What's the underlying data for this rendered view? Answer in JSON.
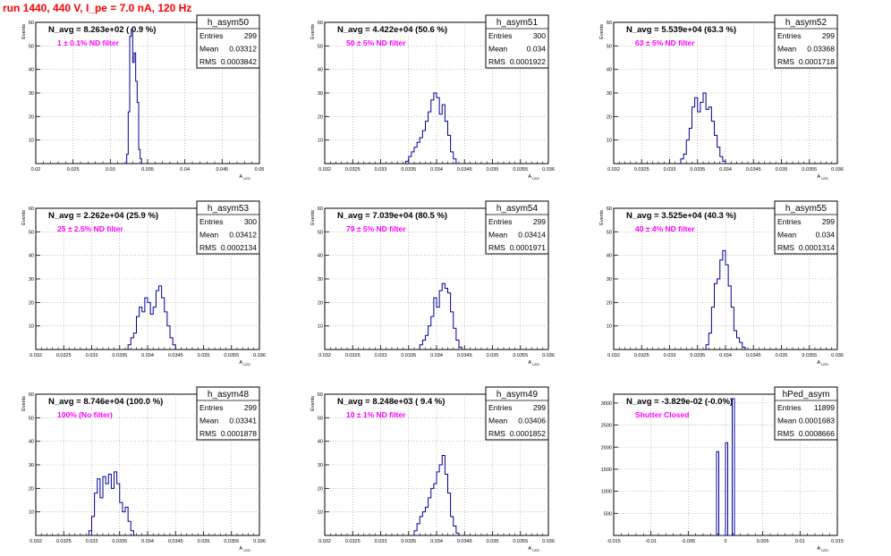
{
  "run_label": "run 1440,   440 V, I_pe = 7.0 nA, 120 Hz",
  "colors": {
    "hist_line": "#000099",
    "run_label": "#ff0000",
    "filter_label": "#ff00ff",
    "grid": "#999999"
  },
  "chart_data": [
    {
      "type": "histogram",
      "title": "h_asym50",
      "stats": {
        "entries_label": "Entries",
        "entries": "299",
        "mean_label": "Mean",
        "mean": "0.03312",
        "rms_label": "RMS",
        "rms": "0.0003842"
      },
      "navg_label": "N_avg = 8.263e+02 ( 0.9 %)",
      "filter_label": "1 ± 0.1% ND filter",
      "xlabel": "A_LED",
      "ylabel": "Events",
      "xlim": [
        0.02,
        0.05
      ],
      "ylim": [
        0,
        60
      ],
      "xticks": [
        0.02,
        0.025,
        0.03,
        0.035,
        0.04,
        0.045,
        0.05
      ],
      "xtick_labels": [
        "0.02",
        "0.025",
        "0.03",
        "0.035",
        "0.04",
        "0.045",
        "0.05"
      ],
      "yticks": [
        10,
        20,
        30,
        40,
        50,
        60
      ],
      "bins": [
        [
          0.0322,
          0.0324,
          4
        ],
        [
          0.0324,
          0.0326,
          22
        ],
        [
          0.0326,
          0.0328,
          54
        ],
        [
          0.0328,
          0.033,
          57
        ],
        [
          0.033,
          0.0332,
          43
        ],
        [
          0.0332,
          0.0334,
          47
        ],
        [
          0.0334,
          0.0336,
          35
        ],
        [
          0.0336,
          0.0338,
          26
        ],
        [
          0.0338,
          0.034,
          6
        ],
        [
          0.034,
          0.0342,
          2
        ]
      ]
    },
    {
      "type": "histogram",
      "title": "h_asym51",
      "stats": {
        "entries_label": "Entries",
        "entries": "300",
        "mean_label": "Mean",
        "mean": "0.034",
        "rms_label": "RMS",
        "rms": "0.0001922"
      },
      "navg_label": "N_avg = 4.422e+04 (50.6 %)",
      "filter_label": "50 ± 5% ND filter",
      "xlabel": "A_LED",
      "ylabel": "Events",
      "xlim": [
        0.032,
        0.036
      ],
      "ylim": [
        0,
        60
      ],
      "xticks": [
        0.032,
        0.0325,
        0.033,
        0.0335,
        0.034,
        0.0345,
        0.035,
        0.0355,
        0.036
      ],
      "xtick_labels": [
        "0.032",
        "0.0325",
        "0.033",
        "0.0335",
        "0.034",
        "0.0345",
        "0.035",
        "0.0355",
        "0.036"
      ],
      "yticks": [
        10,
        20,
        30,
        40,
        50,
        60
      ],
      "bins": [
        [
          0.03345,
          0.0335,
          1
        ],
        [
          0.0335,
          0.03355,
          3
        ],
        [
          0.03355,
          0.0336,
          5
        ],
        [
          0.0336,
          0.03365,
          7
        ],
        [
          0.03365,
          0.0337,
          9
        ],
        [
          0.0337,
          0.03375,
          11
        ],
        [
          0.03375,
          0.0338,
          14
        ],
        [
          0.0338,
          0.03385,
          18
        ],
        [
          0.03385,
          0.0339,
          22
        ],
        [
          0.0339,
          0.03395,
          27
        ],
        [
          0.03395,
          0.034,
          30
        ],
        [
          0.034,
          0.03405,
          28
        ],
        [
          0.03405,
          0.0341,
          21
        ],
        [
          0.0341,
          0.03415,
          25
        ],
        [
          0.03415,
          0.0342,
          18
        ],
        [
          0.0342,
          0.03425,
          12
        ],
        [
          0.03425,
          0.0343,
          5
        ],
        [
          0.0343,
          0.03435,
          2
        ]
      ]
    },
    {
      "type": "histogram",
      "title": "h_asym52",
      "stats": {
        "entries_label": "Entries",
        "entries": "299",
        "mean_label": "Mean",
        "mean": "0.03368",
        "rms_label": "RMS",
        "rms": "0.0001718"
      },
      "navg_label": "N_avg = 5.539e+04 (63.3 %)",
      "filter_label": "63 ± 5% ND filter",
      "xlabel": "A_LED",
      "ylabel": "Events",
      "xlim": [
        0.032,
        0.036
      ],
      "ylim": [
        0,
        60
      ],
      "xticks": [
        0.032,
        0.0325,
        0.033,
        0.0335,
        0.034,
        0.0345,
        0.035,
        0.0355,
        0.036
      ],
      "xtick_labels": [
        "0.032",
        "0.0325",
        "0.033",
        "0.0335",
        "0.034",
        "0.0345",
        "0.035",
        "0.0355",
        "0.036"
      ],
      "yticks": [
        10,
        20,
        30,
        40,
        50,
        60
      ],
      "bins": [
        [
          0.0332,
          0.03325,
          2
        ],
        [
          0.03325,
          0.0333,
          4
        ],
        [
          0.0333,
          0.03335,
          10
        ],
        [
          0.03335,
          0.0334,
          15
        ],
        [
          0.0334,
          0.03345,
          24
        ],
        [
          0.03345,
          0.0335,
          28
        ],
        [
          0.0335,
          0.03355,
          22
        ],
        [
          0.03355,
          0.0336,
          26
        ],
        [
          0.0336,
          0.03365,
          30
        ],
        [
          0.03365,
          0.0337,
          23
        ],
        [
          0.0337,
          0.03375,
          24
        ],
        [
          0.03375,
          0.0338,
          18
        ],
        [
          0.0338,
          0.03385,
          12
        ],
        [
          0.03385,
          0.0339,
          7
        ],
        [
          0.0339,
          0.03395,
          3
        ],
        [
          0.03395,
          0.034,
          1
        ]
      ]
    },
    {
      "type": "histogram",
      "title": "h_asym53",
      "stats": {
        "entries_label": "Entries",
        "entries": "300",
        "mean_label": "Mean",
        "mean": "0.03412",
        "rms_label": "RMS",
        "rms": "0.0002134"
      },
      "navg_label": "N_avg = 2.262e+04 (25.9 %)",
      "filter_label": "25 ± 2.5% ND filter",
      "xlabel": "A_LED",
      "ylabel": "Events",
      "xlim": [
        0.032,
        0.036
      ],
      "ylim": [
        0,
        60
      ],
      "xticks": [
        0.032,
        0.0325,
        0.033,
        0.0335,
        0.034,
        0.0345,
        0.035,
        0.0355,
        0.036
      ],
      "xtick_labels": [
        "0.032",
        "0.0325",
        "0.033",
        "0.0335",
        "0.034",
        "0.0345",
        "0.035",
        "0.0355",
        "0.036"
      ],
      "yticks": [
        10,
        20,
        30,
        40,
        50,
        60
      ],
      "bins": [
        [
          0.03365,
          0.0337,
          2
        ],
        [
          0.0337,
          0.03375,
          5
        ],
        [
          0.03375,
          0.0338,
          7
        ],
        [
          0.0338,
          0.03385,
          14
        ],
        [
          0.03385,
          0.0339,
          18
        ],
        [
          0.0339,
          0.03395,
          16
        ],
        [
          0.03395,
          0.034,
          22
        ],
        [
          0.034,
          0.03405,
          20
        ],
        [
          0.03405,
          0.0341,
          15
        ],
        [
          0.0341,
          0.03415,
          18
        ],
        [
          0.03415,
          0.0342,
          25
        ],
        [
          0.0342,
          0.03425,
          27
        ],
        [
          0.03425,
          0.0343,
          22
        ],
        [
          0.0343,
          0.03435,
          16
        ],
        [
          0.03435,
          0.0344,
          10
        ],
        [
          0.0344,
          0.03445,
          5
        ],
        [
          0.03445,
          0.0345,
          2
        ]
      ]
    },
    {
      "type": "histogram",
      "title": "h_asym54",
      "stats": {
        "entries_label": "Entries",
        "entries": "299",
        "mean_label": "Mean",
        "mean": "0.03414",
        "rms_label": "RMS",
        "rms": "0.0001971"
      },
      "navg_label": "N_avg = 7.039e+04 (80.5 %)",
      "filter_label": "79 ± 5% ND filter",
      "xlabel": "A_LED",
      "ylabel": "Events",
      "xlim": [
        0.032,
        0.036
      ],
      "ylim": [
        0,
        60
      ],
      "xticks": [
        0.032,
        0.0325,
        0.033,
        0.0335,
        0.034,
        0.0345,
        0.035,
        0.0355,
        0.036
      ],
      "xtick_labels": [
        "0.032",
        "0.0325",
        "0.033",
        "0.0335",
        "0.034",
        "0.0345",
        "0.035",
        "0.0355",
        "0.036"
      ],
      "yticks": [
        10,
        20,
        30,
        40,
        50,
        60
      ],
      "bins": [
        [
          0.0337,
          0.03375,
          2
        ],
        [
          0.03375,
          0.0338,
          4
        ],
        [
          0.0338,
          0.03385,
          6
        ],
        [
          0.03385,
          0.0339,
          10
        ],
        [
          0.0339,
          0.03395,
          14
        ],
        [
          0.03395,
          0.034,
          22
        ],
        [
          0.034,
          0.03405,
          18
        ],
        [
          0.03405,
          0.0341,
          25
        ],
        [
          0.0341,
          0.03415,
          28
        ],
        [
          0.03415,
          0.0342,
          26
        ],
        [
          0.0342,
          0.03425,
          24
        ],
        [
          0.03425,
          0.0343,
          16
        ],
        [
          0.0343,
          0.03435,
          9
        ],
        [
          0.03435,
          0.0344,
          4
        ],
        [
          0.0344,
          0.03445,
          1
        ]
      ]
    },
    {
      "type": "histogram",
      "title": "h_asym55",
      "stats": {
        "entries_label": "Entries",
        "entries": "299",
        "mean_label": "Mean",
        "mean": "0.034",
        "rms_label": "RMS",
        "rms": "0.0001314"
      },
      "navg_label": "N_avg = 3.525e+04 (40.3 %)",
      "filter_label": "40 ± 4% ND filter",
      "xlabel": "A_LED",
      "ylabel": "Events",
      "xlim": [
        0.032,
        0.036
      ],
      "ylim": [
        0,
        60
      ],
      "xticks": [
        0.032,
        0.0325,
        0.033,
        0.0335,
        0.034,
        0.0345,
        0.035,
        0.0355,
        0.036
      ],
      "xtick_labels": [
        "0.032",
        "0.0325",
        "0.033",
        "0.0335",
        "0.034",
        "0.0345",
        "0.035",
        "0.0355",
        "0.036"
      ],
      "yticks": [
        10,
        20,
        30,
        40,
        50,
        60
      ],
      "bins": [
        [
          0.03365,
          0.0337,
          2
        ],
        [
          0.0337,
          0.03375,
          7
        ],
        [
          0.03375,
          0.0338,
          18
        ],
        [
          0.0338,
          0.03385,
          28
        ],
        [
          0.03385,
          0.0339,
          30
        ],
        [
          0.0339,
          0.03395,
          38
        ],
        [
          0.03395,
          0.034,
          42
        ],
        [
          0.034,
          0.03405,
          36
        ],
        [
          0.03405,
          0.0341,
          27
        ],
        [
          0.0341,
          0.03415,
          18
        ],
        [
          0.03415,
          0.0342,
          8
        ],
        [
          0.0342,
          0.03425,
          5
        ],
        [
          0.03425,
          0.0343,
          3
        ],
        [
          0.0343,
          0.03435,
          1
        ]
      ]
    },
    {
      "type": "histogram",
      "title": "h_asym48",
      "stats": {
        "entries_label": "Entries",
        "entries": "299",
        "mean_label": "Mean",
        "mean": "0.03341",
        "rms_label": "RMS",
        "rms": "0.0001878"
      },
      "navg_label": "N_avg = 8.746e+04 (100.0 %)",
      "filter_label": "100% (No filter)",
      "xlabel": "A_LED",
      "ylabel": "Events",
      "xlim": [
        0.032,
        0.036
      ],
      "ylim": [
        0,
        60
      ],
      "xticks": [
        0.032,
        0.0325,
        0.033,
        0.0335,
        0.034,
        0.0345,
        0.035,
        0.0355,
        0.036
      ],
      "xtick_labels": [
        "0.032",
        "0.0325",
        "0.033",
        "0.0335",
        "0.034",
        "0.0345",
        "0.035",
        "0.0355",
        "0.036"
      ],
      "yticks": [
        10,
        20,
        30,
        40,
        50,
        60
      ],
      "bins": [
        [
          0.03295,
          0.033,
          2
        ],
        [
          0.033,
          0.03305,
          8
        ],
        [
          0.03305,
          0.0331,
          18
        ],
        [
          0.0331,
          0.03315,
          24
        ],
        [
          0.03315,
          0.0332,
          16
        ],
        [
          0.0332,
          0.03325,
          25
        ],
        [
          0.03325,
          0.0333,
          22
        ],
        [
          0.0333,
          0.03335,
          26
        ],
        [
          0.03335,
          0.0334,
          20
        ],
        [
          0.0334,
          0.03345,
          27
        ],
        [
          0.03345,
          0.0335,
          22
        ],
        [
          0.0335,
          0.03355,
          14
        ],
        [
          0.03355,
          0.0336,
          10
        ],
        [
          0.0336,
          0.03365,
          12
        ],
        [
          0.03365,
          0.0337,
          6
        ],
        [
          0.0337,
          0.03375,
          2
        ]
      ]
    },
    {
      "type": "histogram",
      "title": "h_asym49",
      "stats": {
        "entries_label": "Entries",
        "entries": "299",
        "mean_label": "Mean",
        "mean": "0.03406",
        "rms_label": "RMS",
        "rms": "0.0001852"
      },
      "navg_label": "N_avg = 8.248e+03 ( 9.4 %)",
      "filter_label": "10 ± 1% ND filter",
      "xlabel": "A_LED",
      "ylabel": "Events",
      "xlim": [
        0.032,
        0.036
      ],
      "ylim": [
        0,
        60
      ],
      "xticks": [
        0.032,
        0.0325,
        0.033,
        0.0335,
        0.034,
        0.0345,
        0.035,
        0.0355,
        0.036
      ],
      "xtick_labels": [
        "0.032",
        "0.0325",
        "0.033",
        "0.0335",
        "0.034",
        "0.0345",
        "0.035",
        "0.0355",
        "0.036"
      ],
      "yticks": [
        10,
        20,
        30,
        40,
        50,
        60
      ],
      "bins": [
        [
          0.0336,
          0.03365,
          2
        ],
        [
          0.03365,
          0.0337,
          5
        ],
        [
          0.0337,
          0.03375,
          8
        ],
        [
          0.03375,
          0.0338,
          10
        ],
        [
          0.0338,
          0.03385,
          12
        ],
        [
          0.03385,
          0.0339,
          16
        ],
        [
          0.0339,
          0.03395,
          20
        ],
        [
          0.03395,
          0.034,
          22
        ],
        [
          0.034,
          0.03405,
          27
        ],
        [
          0.03405,
          0.0341,
          30
        ],
        [
          0.0341,
          0.03415,
          34
        ],
        [
          0.03415,
          0.0342,
          26
        ],
        [
          0.0342,
          0.03425,
          18
        ],
        [
          0.03425,
          0.0343,
          8
        ],
        [
          0.0343,
          0.03435,
          4
        ],
        [
          0.03435,
          0.0344,
          1
        ]
      ]
    },
    {
      "type": "histogram",
      "title": "hPed_asym",
      "stats": {
        "entries_label": "Entries",
        "entries": "11899",
        "mean_label": "Mean",
        "mean": "0.0001683",
        "rms_label": "RMS",
        "rms": "0.0008666"
      },
      "navg_label": "N_avg = -3.829e-02 (-0.0%)",
      "filter_label": "Shutter Closed",
      "xlabel": "A_LED",
      "ylabel": "",
      "xlim": [
        -0.015,
        0.015
      ],
      "ylim": [
        0,
        3200
      ],
      "xticks": [
        -0.015,
        -0.01,
        -0.005,
        0,
        0.005,
        0.01,
        0.015
      ],
      "xtick_labels": [
        "-0.015",
        "-0.01",
        "-0.005",
        "0",
        "0.005",
        "0.01",
        "0.015"
      ],
      "yticks": [
        500,
        1000,
        1500,
        2000,
        2500,
        3000
      ],
      "bins": [
        [
          -0.0015,
          -0.0012,
          0
        ],
        [
          -0.0012,
          -0.0009,
          1900
        ],
        [
          -0.0009,
          -0.0006,
          0
        ],
        [
          -0.0006,
          -0.0003,
          0
        ],
        [
          -0.0003,
          0,
          0
        ],
        [
          0,
          0.0003,
          2100
        ],
        [
          0.0003,
          0.0006,
          0
        ],
        [
          0.0006,
          0.0009,
          0
        ],
        [
          0.0009,
          0.0012,
          3100
        ],
        [
          0.0012,
          0.0015,
          0
        ]
      ]
    }
  ]
}
